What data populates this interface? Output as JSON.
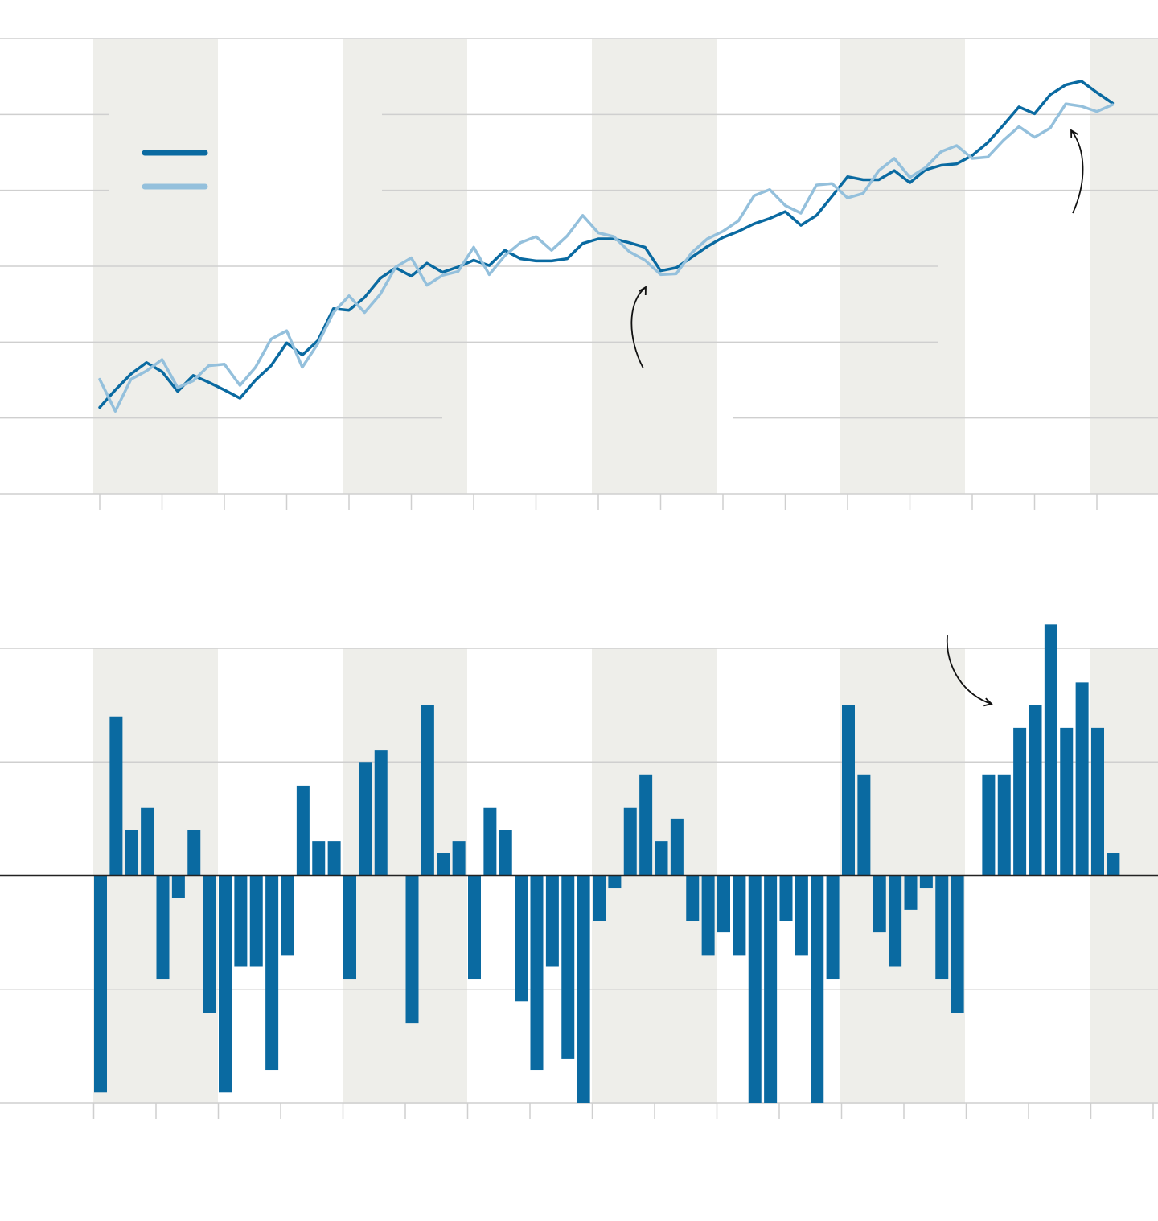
{
  "chart_data": [
    {
      "type": "line",
      "categories": [
        null,
        null,
        null,
        null,
        null,
        null,
        null,
        null,
        null,
        null,
        null,
        null,
        null,
        null,
        null,
        null,
        null,
        null,
        null,
        null,
        null,
        null,
        null,
        null,
        null,
        null,
        null,
        null,
        null,
        null,
        null,
        null,
        null,
        null,
        null,
        null,
        null,
        null,
        null,
        null,
        null,
        null,
        null,
        null,
        null,
        null,
        null,
        null,
        null,
        null,
        null,
        null,
        null,
        null,
        null,
        null,
        null,
        null,
        null,
        null,
        null,
        null,
        null,
        null,
        null,
        null
      ],
      "series": [
        {
          "color": "#0a6aa1",
          "values": [
            1.14,
            1.37,
            1.58,
            1.73,
            1.61,
            1.35,
            1.56,
            1.47,
            1.37,
            1.26,
            1.5,
            1.69,
            1.99,
            1.83,
            2.02,
            2.44,
            2.42,
            2.59,
            2.84,
            2.98,
            2.87,
            3.04,
            2.92,
            2.99,
            3.08,
            3.01,
            3.21,
            3.1,
            3.07,
            3.07,
            3.1,
            3.3,
            3.36,
            3.36,
            3.31,
            3.25,
            2.94,
            2.98,
            3.12,
            3.26,
            3.38,
            3.46,
            3.56,
            3.63,
            3.72,
            3.54,
            3.67,
            3.92,
            4.18,
            4.14,
            4.14,
            4.26,
            4.1,
            4.27,
            4.33,
            4.35,
            4.46,
            4.63,
            4.86,
            5.1,
            5.01,
            5.26,
            5.39,
            5.44,
            5.29,
            5.15
          ]
        },
        {
          "color": "#94c0dc",
          "values": [
            1.51,
            1.09,
            1.51,
            1.62,
            1.77,
            1.4,
            1.49,
            1.69,
            1.71,
            1.43,
            1.67,
            2.04,
            2.15,
            1.67,
            1.98,
            2.39,
            2.61,
            2.39,
            2.63,
            2.99,
            3.11,
            2.75,
            2.88,
            2.93,
            3.25,
            2.89,
            3.14,
            3.31,
            3.39,
            3.21,
            3.4,
            3.67,
            3.44,
            3.39,
            3.19,
            3.08,
            2.89,
            2.9,
            3.18,
            3.36,
            3.46,
            3.6,
            3.93,
            4.01,
            3.8,
            3.7,
            4.07,
            4.09,
            3.9,
            3.96,
            4.26,
            4.42,
            4.17,
            4.3,
            4.51,
            4.59,
            4.42,
            4.44,
            4.66,
            4.84,
            4.7,
            4.82,
            5.14,
            5.11,
            5.04,
            5.13
          ]
        }
      ],
      "ylim": [
        0,
        6
      ],
      "yticks": [
        0,
        1,
        2,
        3,
        4,
        5,
        6
      ],
      "grid": true,
      "legend": "upper left"
    },
    {
      "type": "bar",
      "categories": [
        null,
        null,
        null,
        null,
        null,
        null,
        null,
        null,
        null,
        null,
        null,
        null,
        null,
        null,
        null,
        null,
        null,
        null,
        null,
        null,
        null,
        null,
        null,
        null,
        null,
        null,
        null,
        null,
        null,
        null,
        null,
        null,
        null,
        null,
        null,
        null,
        null,
        null,
        null,
        null,
        null,
        null,
        null,
        null,
        null,
        null,
        null,
        null,
        null,
        null,
        null,
        null,
        null,
        null,
        null,
        null,
        null,
        null,
        null,
        null,
        null,
        null,
        null,
        null,
        null,
        null
      ],
      "values": [
        -1.91,
        1.4,
        0.4,
        0.6,
        -0.91,
        -0.2,
        0.4,
        -1.21,
        -1.91,
        -0.8,
        -0.8,
        -1.71,
        -0.7,
        0.79,
        0.3,
        0.3,
        -0.91,
        1.0,
        1.1,
        0,
        -1.3,
        1.5,
        0.2,
        0.3,
        -0.91,
        0.6,
        0.4,
        -1.11,
        -1.71,
        -0.8,
        -1.61,
        -2.0,
        -0.4,
        -0.11,
        0.6,
        0.89,
        0.3,
        0.5,
        -0.4,
        -0.7,
        -0.5,
        -0.7,
        -2.0,
        -2.0,
        -0.4,
        -0.7,
        -2.0,
        -0.91,
        1.5,
        0.89,
        -0.5,
        -0.8,
        -0.3,
        -0.11,
        -0.91,
        -1.21,
        0,
        0.89,
        0.89,
        1.3,
        1.5,
        2.21,
        1.3,
        1.7,
        1.3,
        0.2
      ],
      "color": "#0a6aa1",
      "ylim": [
        -2,
        2
      ],
      "yticks": [
        -2,
        -1,
        0,
        1,
        2
      ],
      "grid": true
    }
  ]
}
